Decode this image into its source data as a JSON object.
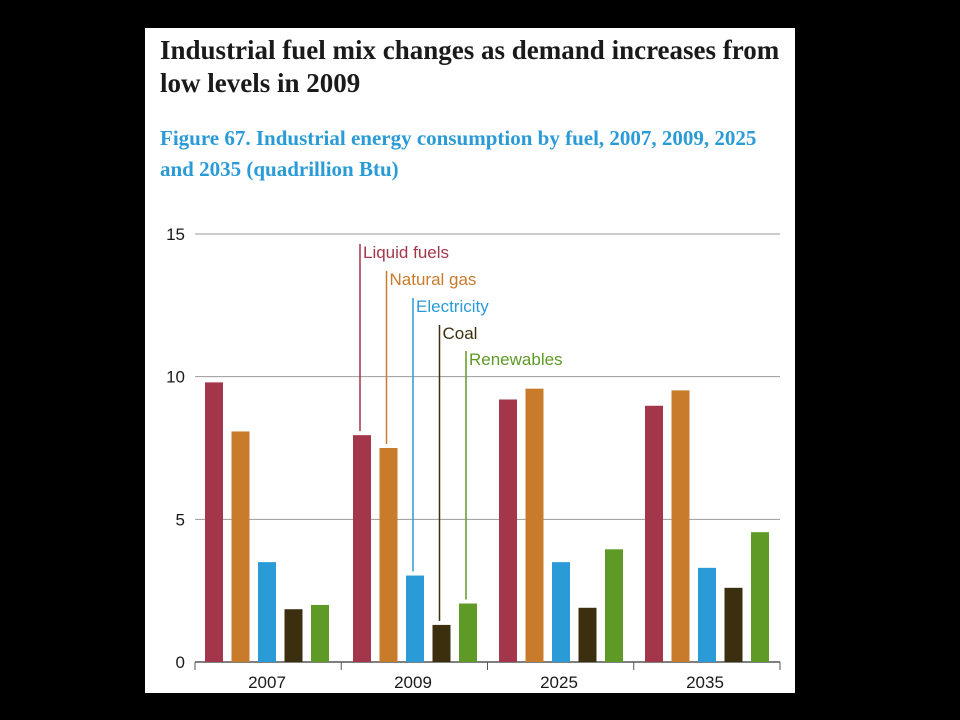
{
  "headline": "Industrial fuel mix changes as demand increases from low levels in 2009",
  "figure_title": "Figure 67. Industrial energy consumption by fuel, 2007, 2009, 2025 and 2035 (quadrillion Btu)",
  "chart_data": {
    "type": "bar",
    "title": "Figure 67. Industrial energy consumption by fuel, 2007, 2009, 2025 and 2035 (quadrillion Btu)",
    "xlabel": "",
    "ylabel": "",
    "categories": [
      "2007",
      "2009",
      "2025",
      "2035"
    ],
    "ylim": [
      0,
      15
    ],
    "yticks": [
      0,
      5,
      10,
      15
    ],
    "grid": true,
    "legend": "inline callouts above 2009 bars",
    "series": [
      {
        "name": "Liquid fuels",
        "color": "#a3364a",
        "values": [
          9.8,
          7.95,
          9.2,
          8.98
        ]
      },
      {
        "name": "Natural gas",
        "color": "#c97b2c",
        "values": [
          8.08,
          7.5,
          9.58,
          9.52
        ]
      },
      {
        "name": "Electricity",
        "color": "#2a9bd7",
        "values": [
          3.5,
          3.03,
          3.5,
          3.3
        ]
      },
      {
        "name": "Coal",
        "color": "#3b2f10",
        "values": [
          1.85,
          1.3,
          1.9,
          2.6
        ]
      },
      {
        "name": "Renewables",
        "color": "#5e9a25",
        "values": [
          2.0,
          2.05,
          3.95,
          4.55
        ]
      }
    ]
  }
}
